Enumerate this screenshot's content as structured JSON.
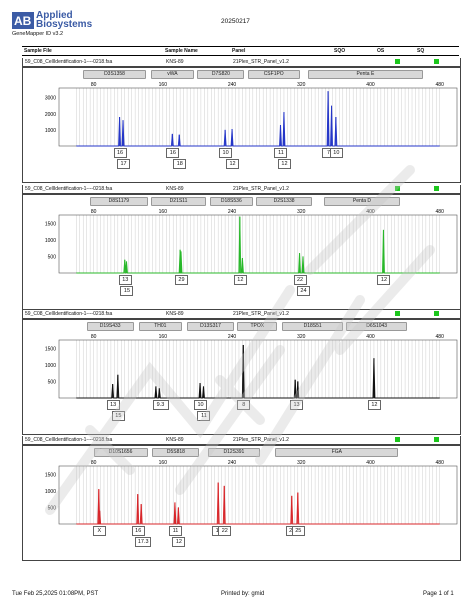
{
  "header": {
    "brand": "Applied Biosystems",
    "app_version": "GeneMapper ID v3.2",
    "date": "20250217"
  },
  "columns": [
    "Sample File",
    "Sample Name",
    "Panel",
    "SQO",
    "OS",
    "SQ"
  ],
  "colors": {
    "blue": "#2536c8",
    "green": "#29b82a",
    "black": "#111111",
    "red": "#d8262a",
    "quality": "#1cc61c"
  },
  "x_ticks": [
    80,
    160,
    240,
    320,
    400,
    480
  ],
  "panels": [
    {
      "sample_file": "59_C08_CellIdentification-1----0218.fsa",
      "sample_name": "KNS-89",
      "panel_name": "21Plex_STR_Panel_v1.2",
      "color": "#2536c8",
      "y_ticks": [
        1000,
        2000,
        3000
      ],
      "y_max": 3600,
      "markers": [
        {
          "name": "D3S1358",
          "start": 68,
          "end": 138
        },
        {
          "name": "vWA",
          "start": 146,
          "end": 194
        },
        {
          "name": "D7S820",
          "start": 200,
          "end": 252
        },
        {
          "name": "CSF1PO",
          "start": 258,
          "end": 316
        },
        {
          "name": "Penta E",
          "start": 328,
          "end": 458
        }
      ],
      "peaks": [
        {
          "x": 110,
          "y": 1800
        },
        {
          "x": 114,
          "y": 1600
        },
        {
          "x": 171,
          "y": 750
        },
        {
          "x": 179,
          "y": 700
        },
        {
          "x": 232,
          "y": 1000
        },
        {
          "x": 240,
          "y": 1050
        },
        {
          "x": 296,
          "y": 1300
        },
        {
          "x": 300,
          "y": 2100
        },
        {
          "x": 351,
          "y": 3400
        },
        {
          "x": 355,
          "y": 2500
        },
        {
          "x": 360,
          "y": 1800
        }
      ],
      "alleles": [
        {
          "label": "16",
          "x": 110,
          "row": 0
        },
        {
          "label": "17",
          "x": 114,
          "row": 1
        },
        {
          "label": "16",
          "x": 171,
          "row": 0
        },
        {
          "label": "18",
          "x": 179,
          "row": 1
        },
        {
          "label": "10",
          "x": 232,
          "row": 0
        },
        {
          "label": "12",
          "x": 240,
          "row": 1
        },
        {
          "label": "11",
          "x": 296,
          "row": 0
        },
        {
          "label": "12",
          "x": 300,
          "row": 1
        },
        {
          "label": "7",
          "x": 351,
          "row": 0
        },
        {
          "label": "10",
          "x": 360,
          "row": 0
        }
      ]
    },
    {
      "sample_file": "59_C08_CellIdentification-1----0218.fsa",
      "sample_name": "KNS-89",
      "panel_name": "21Plex_STR_Panel_v1.2",
      "color": "#29b82a",
      "y_ticks": [
        500,
        1000,
        1500
      ],
      "y_max": 1750,
      "markers": [
        {
          "name": "D8S1179",
          "start": 76,
          "end": 140
        },
        {
          "name": "D21S11",
          "start": 146,
          "end": 208
        },
        {
          "name": "D18S536",
          "start": 214,
          "end": 262
        },
        {
          "name": "D2S1338",
          "start": 268,
          "end": 330
        },
        {
          "name": "Penta D",
          "start": 346,
          "end": 432
        }
      ],
      "peaks": [
        {
          "x": 116,
          "y": 400
        },
        {
          "x": 118,
          "y": 350
        },
        {
          "x": 180,
          "y": 700
        },
        {
          "x": 181,
          "y": 650
        },
        {
          "x": 249,
          "y": 1700
        },
        {
          "x": 252,
          "y": 450
        },
        {
          "x": 318,
          "y": 600
        },
        {
          "x": 322,
          "y": 500
        },
        {
          "x": 415,
          "y": 1300
        }
      ],
      "alleles": [
        {
          "label": "13",
          "x": 116,
          "row": 0
        },
        {
          "label": "15",
          "x": 118,
          "row": 1
        },
        {
          "label": "29",
          "x": 181,
          "row": 0
        },
        {
          "label": "12",
          "x": 249,
          "row": 0
        },
        {
          "label": "22",
          "x": 318,
          "row": 0
        },
        {
          "label": "24",
          "x": 322,
          "row": 1
        },
        {
          "label": "12",
          "x": 415,
          "row": 0
        }
      ]
    },
    {
      "sample_file": "59_C08_CellIdentification-1----0218.fsa",
      "sample_name": "KNS-89",
      "panel_name": "21Plex_STR_Panel_v1.2",
      "color": "#111111",
      "y_ticks": [
        500,
        1000,
        1500
      ],
      "y_max": 1750,
      "markers": [
        {
          "name": "D19S433",
          "start": 72,
          "end": 124
        },
        {
          "name": "TH01",
          "start": 132,
          "end": 180
        },
        {
          "name": "D13S317",
          "start": 188,
          "end": 240
        },
        {
          "name": "TPOX",
          "start": 246,
          "end": 290
        },
        {
          "name": "D18S51",
          "start": 298,
          "end": 366
        },
        {
          "name": "D6S1043",
          "start": 372,
          "end": 440
        }
      ],
      "peaks": [
        {
          "x": 102,
          "y": 420
        },
        {
          "x": 108,
          "y": 700
        },
        {
          "x": 152,
          "y": 350
        },
        {
          "x": 156,
          "y": 300
        },
        {
          "x": 203,
          "y": 450
        },
        {
          "x": 207,
          "y": 350
        },
        {
          "x": 253,
          "y": 1600
        },
        {
          "x": 313,
          "y": 550
        },
        {
          "x": 316,
          "y": 500
        },
        {
          "x": 404,
          "y": 1200
        }
      ],
      "alleles": [
        {
          "label": "13",
          "x": 102,
          "row": 0
        },
        {
          "label": "15",
          "x": 108,
          "row": 1
        },
        {
          "label": "9.3",
          "x": 155,
          "row": 0
        },
        {
          "label": "10",
          "x": 203,
          "row": 0
        },
        {
          "label": "11",
          "x": 207,
          "row": 1
        },
        {
          "label": "8",
          "x": 253,
          "row": 0
        },
        {
          "label": "13",
          "x": 314,
          "row": 0
        },
        {
          "label": "12",
          "x": 404,
          "row": 0
        }
      ]
    },
    {
      "sample_file": "59_C08_CellIdentification-1----0218.fsa",
      "sample_name": "KNS-89",
      "panel_name": "21Plex_STR_Panel_v1.2",
      "color": "#d8262a",
      "y_ticks": [
        500,
        1000,
        1500
      ],
      "y_max": 1750,
      "markers": [
        {
          "name": "D10S1656",
          "start": 80,
          "end": 140
        },
        {
          "name": "D5S818",
          "start": 148,
          "end": 200
        },
        {
          "name": "D12S391",
          "start": 212,
          "end": 270
        },
        {
          "name": "FGA",
          "start": 290,
          "end": 430
        }
      ],
      "peaks": [
        {
          "x": 86,
          "y": 1050
        },
        {
          "x": 87,
          "y": 400
        },
        {
          "x": 131,
          "y": 900
        },
        {
          "x": 135,
          "y": 600
        },
        {
          "x": 174,
          "y": 650
        },
        {
          "x": 178,
          "y": 500
        },
        {
          "x": 224,
          "y": 1250
        },
        {
          "x": 231,
          "y": 1150
        },
        {
          "x": 309,
          "y": 850
        },
        {
          "x": 316,
          "y": 950
        }
      ],
      "alleles": [
        {
          "label": "X",
          "x": 86,
          "row": 0
        },
        {
          "label": "16",
          "x": 131,
          "row": 0
        },
        {
          "label": "17.3",
          "x": 135,
          "row": 1
        },
        {
          "label": "11",
          "x": 174,
          "row": 0
        },
        {
          "label": "12",
          "x": 178,
          "row": 1
        },
        {
          "label": "17",
          "x": 224,
          "row": 0
        },
        {
          "label": "22",
          "x": 231,
          "row": 0
        },
        {
          "label": "21",
          "x": 309,
          "row": 0
        },
        {
          "label": "25",
          "x": 316,
          "row": 0
        }
      ]
    }
  ],
  "footer": {
    "printed_at": "Tue Feb 25,2025 01:08PM, PST",
    "printed_by": "Printed by: gmid",
    "page": "Page 1 of 1"
  }
}
